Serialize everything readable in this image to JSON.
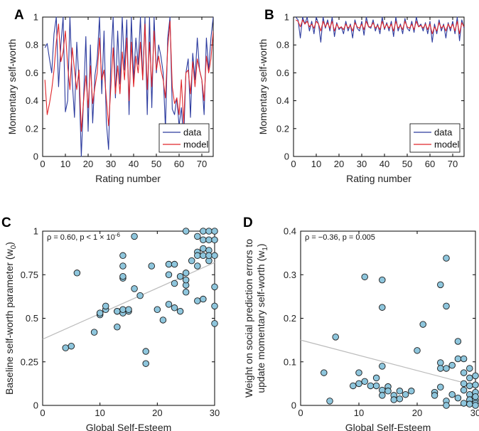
{
  "chart_data": [
    {
      "panel": "A",
      "type": "line",
      "xlabel": "Rating number",
      "ylabel": "Momentary self-worth",
      "xlim": [
        0,
        75
      ],
      "ylim": [
        0,
        1
      ],
      "xticks": [
        "0",
        "10",
        "20",
        "30",
        "40",
        "50",
        "60",
        "70"
      ],
      "yticks": [
        "0",
        "0.2",
        "0.4",
        "0.6",
        "0.8",
        "1"
      ],
      "legend": [
        "data",
        "model"
      ],
      "legend_position": "bottom-right",
      "series": [
        {
          "name": "data",
          "color": "#2b3a9e",
          "values": [
            0.78,
            0.81,
            0.7,
            0.6,
            0.88,
            1.0,
            0.5,
            0.8,
            1.0,
            0.32,
            0.4,
            1.0,
            0.55,
            0.28,
            0.82,
            0.55,
            0.0,
            0.42,
            0.86,
            0.18,
            0.8,
            0.24,
            0.58,
            0.7,
            1.0,
            0.45,
            0.9,
            0.25,
            0.05,
            0.7,
            1.0,
            0.42,
            0.9,
            0.52,
            1.0,
            0.62,
            0.98,
            0.3,
            1.0,
            0.55,
            0.85,
            0.66,
            1.0,
            0.55,
            1.0,
            0.3,
            1.0,
            0.35,
            1.0,
            0.6,
            0.8,
            0.72,
            0.6,
            0.2,
            0.85,
            1.0,
            0.34,
            0.3,
            0.42,
            0.22,
            0.35,
            0.12,
            0.6,
            0.7,
            0.28,
            0.74,
            0.55,
            0.85,
            0.62,
            0.55,
            0.3,
            0.85,
            0.62,
            0.85,
            1.0
          ]
        },
        {
          "name": "model",
          "color": "#e0262a",
          "values": [
            0.55,
            0.3,
            0.38,
            0.48,
            0.62,
            0.82,
            0.95,
            0.68,
            0.75,
            0.9,
            0.65,
            0.48,
            0.78,
            0.62,
            0.48,
            0.62,
            0.18,
            0.4,
            0.58,
            0.35,
            0.65,
            0.38,
            0.5,
            0.6,
            0.85,
            0.55,
            0.62,
            0.42,
            0.22,
            0.5,
            0.78,
            0.45,
            0.65,
            0.45,
            0.75,
            0.55,
            0.85,
            0.4,
            0.82,
            0.5,
            0.72,
            0.6,
            0.82,
            0.55,
            0.95,
            0.48,
            0.82,
            0.5,
            0.9,
            0.62,
            0.72,
            0.62,
            0.55,
            0.42,
            0.78,
            0.97,
            0.5,
            0.38,
            0.42,
            0.3,
            0.55,
            0.24,
            0.6,
            0.62,
            0.45,
            0.68,
            0.5,
            0.7,
            0.62,
            0.55,
            0.4,
            0.72,
            0.6,
            0.7,
            0.9
          ]
        }
      ]
    },
    {
      "panel": "B",
      "type": "line",
      "xlabel": "Rating number",
      "ylabel": "Momentary self-worth",
      "xlim": [
        0,
        75
      ],
      "ylim": [
        0,
        1
      ],
      "xticks": [
        "0",
        "10",
        "20",
        "30",
        "40",
        "50",
        "60",
        "70"
      ],
      "yticks": [
        "0",
        "0.2",
        "0.4",
        "0.6",
        "0.8",
        "1"
      ],
      "legend": [
        "data",
        "model"
      ],
      "legend_position": "bottom-right",
      "series": [
        {
          "name": "data",
          "color": "#2b3a9e",
          "values": [
            1.0,
            0.98,
            0.85,
            1.0,
            0.95,
            1.0,
            0.9,
            0.97,
            0.88,
            1.0,
            0.95,
            0.82,
            1.0,
            0.92,
            0.98,
            0.9,
            1.0,
            0.86,
            0.96,
            0.91,
            0.93,
            0.88,
            0.97,
            0.9,
            0.95,
            0.85,
            0.98,
            0.92,
            0.9,
            0.97,
            0.87,
            1.0,
            0.93,
            0.92,
            0.98,
            0.9,
            0.95,
            0.88,
            1.0,
            0.91,
            0.96,
            0.9,
            0.97,
            0.86,
            1.0,
            0.9,
            0.95,
            0.88,
            0.99,
            0.92,
            0.9,
            0.97,
            0.89,
            1.0,
            0.93,
            0.95,
            0.9,
            0.96,
            0.88,
            0.97,
            0.82,
            0.95,
            0.88,
            0.98,
            0.9,
            0.95,
            0.85,
            0.96,
            0.9,
            0.97,
            0.88,
            1.0,
            0.83,
            0.98,
            0.92
          ]
        },
        {
          "name": "model",
          "color": "#e0262a",
          "values": [
            0.98,
            0.97,
            0.93,
            0.98,
            0.95,
            0.97,
            0.93,
            0.95,
            0.92,
            0.97,
            0.95,
            0.9,
            0.97,
            0.93,
            0.96,
            0.92,
            0.97,
            0.9,
            0.95,
            0.92,
            0.93,
            0.91,
            0.95,
            0.92,
            0.94,
            0.9,
            0.96,
            0.93,
            0.92,
            0.95,
            0.91,
            0.97,
            0.93,
            0.93,
            0.96,
            0.92,
            0.94,
            0.91,
            0.97,
            0.92,
            0.95,
            0.92,
            0.95,
            0.9,
            0.97,
            0.92,
            0.94,
            0.91,
            0.97,
            0.93,
            0.92,
            0.95,
            0.91,
            0.97,
            0.93,
            0.94,
            0.92,
            0.95,
            0.91,
            0.95,
            0.88,
            0.93,
            0.9,
            0.96,
            0.92,
            0.94,
            0.9,
            0.95,
            0.92,
            0.95,
            0.9,
            0.97,
            0.88,
            0.96,
            0.93
          ]
        }
      ]
    },
    {
      "panel": "C",
      "type": "scatter",
      "xlabel": "Global Self-Esteem",
      "ylabel": "Baseline self-worth parameter (w",
      "ylabel_sub": "0",
      "ylabel_end": ")",
      "xlim": [
        0,
        30
      ],
      "ylim": [
        0,
        1
      ],
      "xticks": [
        "0",
        "10",
        "20",
        "30"
      ],
      "yticks": [
        "0",
        "0.25",
        "0.5",
        "0.75",
        "1"
      ],
      "annotation": "ρ = 0.60, p < 1 × 10",
      "annotation_sup": "-6",
      "fit_line": {
        "x": [
          0,
          30
        ],
        "y": [
          0.38,
          0.82
        ],
        "color": "#bbbbbb"
      },
      "point_color": "#8ec6dd",
      "points": [
        [
          4,
          0.33
        ],
        [
          5,
          0.34
        ],
        [
          6,
          0.76
        ],
        [
          9,
          0.42
        ],
        [
          10,
          0.52
        ],
        [
          10,
          0.53
        ],
        [
          11,
          0.55
        ],
        [
          11,
          0.57
        ],
        [
          13,
          0.45
        ],
        [
          13,
          0.54
        ],
        [
          13,
          0.54
        ],
        [
          14,
          0.53
        ],
        [
          14,
          0.55
        ],
        [
          14,
          0.73
        ],
        [
          14,
          0.74
        ],
        [
          14,
          0.86
        ],
        [
          14,
          0.8
        ],
        [
          15,
          0.54
        ],
        [
          15,
          0.55
        ],
        [
          16,
          0.97
        ],
        [
          16,
          0.67
        ],
        [
          17,
          0.63
        ],
        [
          18,
          0.31
        ],
        [
          18,
          0.24
        ],
        [
          19,
          0.8
        ],
        [
          20,
          0.55
        ],
        [
          21,
          0.49
        ],
        [
          22,
          0.75
        ],
        [
          22,
          0.81
        ],
        [
          22,
          0.58
        ],
        [
          23,
          0.56
        ],
        [
          23,
          0.7
        ],
        [
          23,
          0.81
        ],
        [
          24,
          0.74
        ],
        [
          24,
          0.54
        ],
        [
          25,
          1.0
        ],
        [
          25,
          0.76
        ],
        [
          25,
          0.69
        ],
        [
          25,
          0.65
        ],
        [
          25,
          0.72
        ],
        [
          26,
          0.83
        ],
        [
          27,
          0.6
        ],
        [
          27,
          0.97
        ],
        [
          27,
          0.88
        ],
        [
          27,
          0.86
        ],
        [
          27,
          0.8
        ],
        [
          28,
          1.0
        ],
        [
          28,
          0.95
        ],
        [
          28,
          0.9
        ],
        [
          28,
          0.61
        ],
        [
          28,
          0.86
        ],
        [
          29,
          1.0
        ],
        [
          29,
          0.95
        ],
        [
          29,
          0.89
        ],
        [
          29,
          0.83
        ],
        [
          29,
          0.86
        ],
        [
          30,
          1.0
        ],
        [
          30,
          0.95
        ],
        [
          30,
          0.86
        ],
        [
          30,
          0.68
        ],
        [
          30,
          0.57
        ],
        [
          30,
          0.47
        ]
      ]
    },
    {
      "panel": "D",
      "type": "scatter",
      "xlabel": "Global Self-Esteem",
      "ylabel_line1": "Weight on social prediction errors to",
      "ylabel_line2": "update momentary self-worth (w",
      "ylabel_sub": "1",
      "ylabel_end": ")",
      "xlim": [
        0,
        30
      ],
      "ylim": [
        0,
        0.4
      ],
      "xticks": [
        "0",
        "10",
        "20",
        "30"
      ],
      "yticks": [
        "0",
        "0.1",
        "0.2",
        "0.3",
        "0.4"
      ],
      "annotation": "ρ = −0.36, p = 0.005",
      "fit_line": {
        "x": [
          0,
          30
        ],
        "y": [
          0.15,
          0.045
        ],
        "color": "#bbbbbb"
      },
      "point_color": "#8ec6dd",
      "points": [
        [
          4,
          0.075
        ],
        [
          5,
          0.01
        ],
        [
          6,
          0.157
        ],
        [
          9,
          0.045
        ],
        [
          10,
          0.075
        ],
        [
          10,
          0.05
        ],
        [
          11,
          0.295
        ],
        [
          11,
          0.055
        ],
        [
          12,
          0.045
        ],
        [
          13,
          0.063
        ],
        [
          13,
          0.045
        ],
        [
          14,
          0.288
        ],
        [
          14,
          0.225
        ],
        [
          14,
          0.09
        ],
        [
          14,
          0.035
        ],
        [
          14,
          0.023
        ],
        [
          15,
          0.043
        ],
        [
          15,
          0.033
        ],
        [
          16,
          0.023
        ],
        [
          16,
          0.013
        ],
        [
          17,
          0.033
        ],
        [
          17,
          0.015
        ],
        [
          18,
          0.025
        ],
        [
          19,
          0.033
        ],
        [
          20,
          0.126
        ],
        [
          21,
          0.186
        ],
        [
          23,
          0.03
        ],
        [
          23,
          0.023
        ],
        [
          24,
          0.098
        ],
        [
          24,
          0.085
        ],
        [
          24,
          0.042
        ],
        [
          25,
          0.338
        ],
        [
          25,
          0.228
        ],
        [
          25,
          0.085
        ],
        [
          25,
          0.01
        ],
        [
          25,
          0.0
        ],
        [
          24,
          0.277
        ],
        [
          26,
          0.025
        ],
        [
          26,
          0.092
        ],
        [
          27,
          0.147
        ],
        [
          27,
          0.107
        ],
        [
          27,
          0.017
        ],
        [
          28,
          0.107
        ],
        [
          28,
          0.075
        ],
        [
          28,
          0.05
        ],
        [
          28,
          0.035
        ],
        [
          28,
          0.005
        ],
        [
          29,
          0.085
        ],
        [
          29,
          0.063
        ],
        [
          29,
          0.045
        ],
        [
          29,
          0.025
        ],
        [
          29,
          0.013
        ],
        [
          29,
          0.003
        ],
        [
          30,
          0.068
        ],
        [
          30,
          0.047
        ],
        [
          30,
          0.03
        ],
        [
          30,
          0.012
        ],
        [
          30,
          0.005
        ],
        [
          30,
          0.02
        ],
        [
          30,
          0.0
        ]
      ]
    }
  ]
}
